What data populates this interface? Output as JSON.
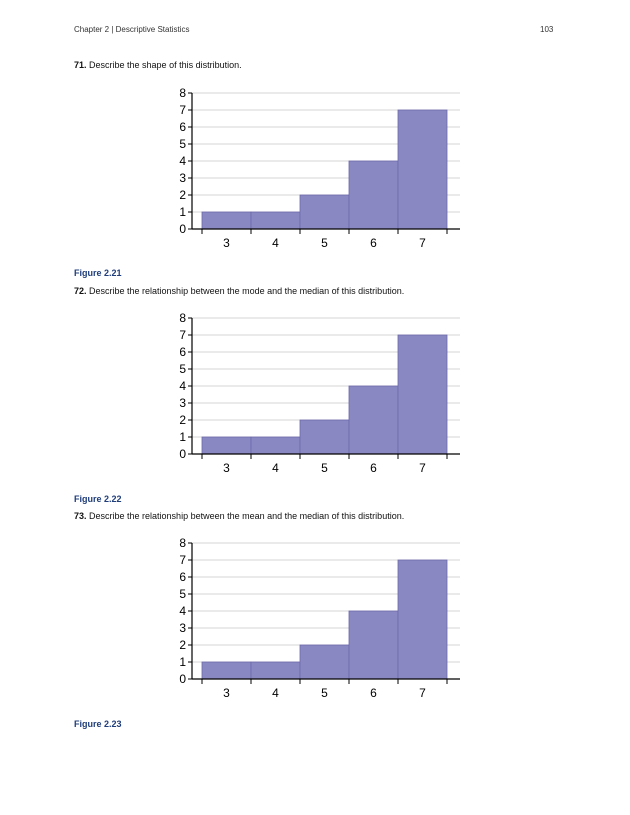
{
  "header": {
    "running_title": "Chapter 2 | Descriptive Statistics",
    "page_number": "103"
  },
  "questions": [
    {
      "number": "71.",
      "text": " Describe the shape of this distribution.",
      "figure_caption": "Figure 2.21"
    },
    {
      "number": "72.",
      "text": " Describe the relationship between the mode and the median of this distribution.",
      "figure_caption": "Figure 2.22"
    },
    {
      "number": "73.",
      "text": " Describe the relationship between the mean and the median of this distribution.",
      "figure_caption": "Figure 2.23"
    }
  ],
  "chart_data": [
    {
      "type": "bar",
      "categories": [
        "3",
        "4",
        "5",
        "6",
        "7"
      ],
      "values": [
        1,
        1,
        2,
        4,
        7
      ],
      "ylim": [
        0,
        8
      ],
      "yticks": [
        0,
        1,
        2,
        3,
        4,
        5,
        6,
        7,
        8
      ],
      "grid": true,
      "bar_color": "#8a88c2",
      "bar_edge_color": "#6b69a8"
    },
    {
      "type": "bar",
      "categories": [
        "3",
        "4",
        "5",
        "6",
        "7"
      ],
      "values": [
        1,
        1,
        2,
        4,
        7
      ],
      "ylim": [
        0,
        8
      ],
      "yticks": [
        0,
        1,
        2,
        3,
        4,
        5,
        6,
        7,
        8
      ],
      "grid": true,
      "bar_color": "#8a88c2",
      "bar_edge_color": "#6b69a8"
    },
    {
      "type": "bar",
      "categories": [
        "3",
        "4",
        "5",
        "6",
        "7"
      ],
      "values": [
        1,
        1,
        2,
        4,
        7
      ],
      "ylim": [
        0,
        8
      ],
      "yticks": [
        0,
        1,
        2,
        3,
        4,
        5,
        6,
        7,
        8
      ],
      "grid": true,
      "bar_color": "#8a88c2",
      "bar_edge_color": "#6b69a8"
    }
  ]
}
